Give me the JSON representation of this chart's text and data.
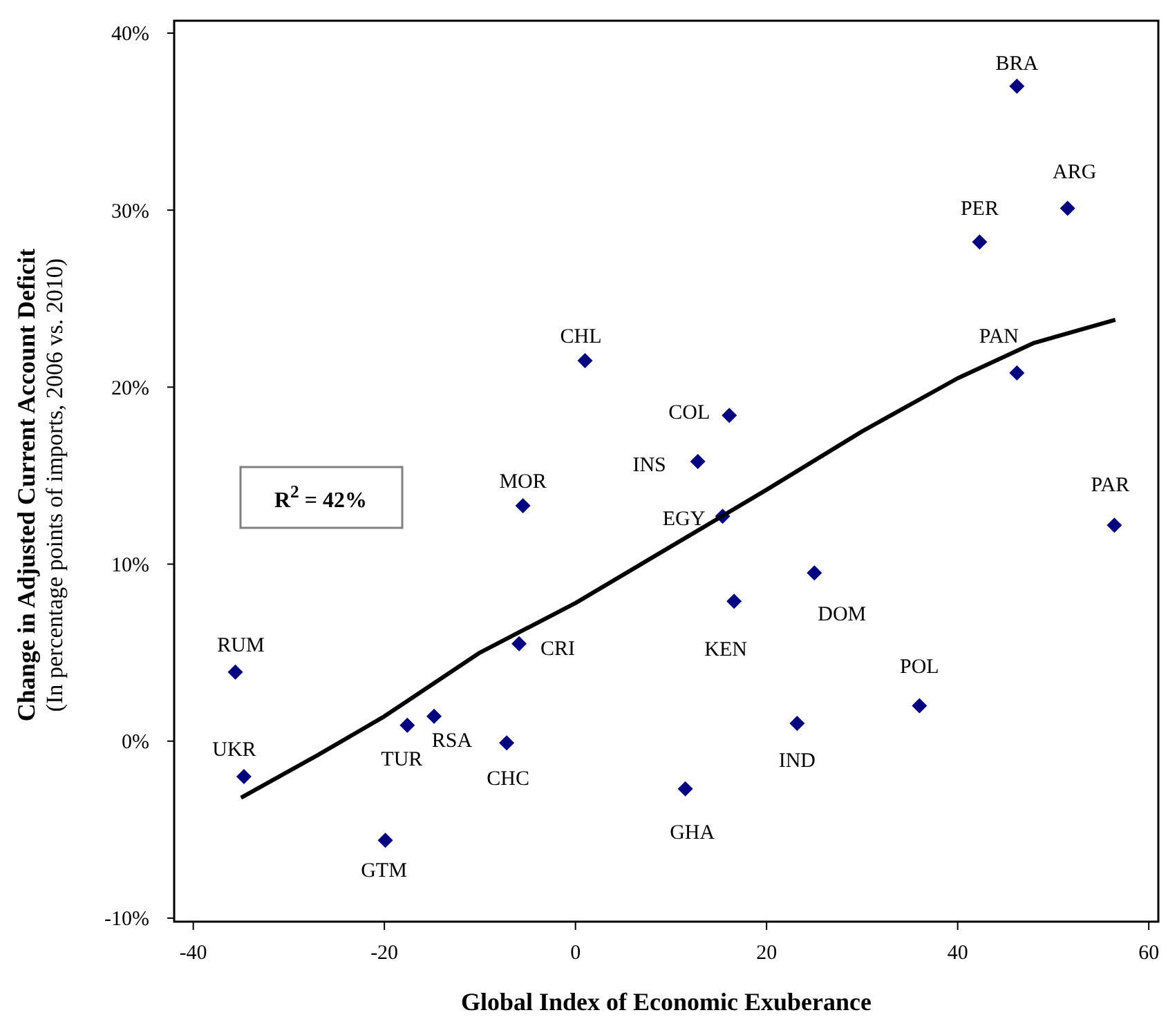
{
  "chart_data": {
    "type": "scatter",
    "xlabel": "Global Index of Economic Exuberance",
    "ylabel": "Change in Adjusted Current Account Deficit\n(In percentage points of imports, 2006 vs. 2010)",
    "xlim": [
      -42,
      61
    ],
    "xticks": [
      -40,
      -20,
      0,
      20,
      40,
      60
    ],
    "ylim": [
      -10.2,
      40.7
    ],
    "yticks": [
      {
        "value": -10,
        "label": "-10%"
      },
      {
        "value": 0,
        "label": "0%"
      },
      {
        "value": 10,
        "label": "10%"
      },
      {
        "value": 20,
        "label": "20%"
      },
      {
        "value": 30,
        "label": "30%"
      },
      {
        "value": 40,
        "label": "40%"
      }
    ],
    "grid": false,
    "series": [
      {
        "color": "#000080",
        "marker": "diamond",
        "x": [
          46.2,
          51.5,
          42.3,
          46.2,
          1.0,
          16.1,
          12.8,
          15.4,
          -5.5,
          56.4,
          25.0,
          16.6,
          -5.9,
          -35.6,
          36.0,
          23.2,
          -14.8,
          -17.6,
          -7.2,
          -34.7,
          11.5,
          -19.9
        ],
        "values": [
          37.0,
          30.1,
          28.2,
          20.8,
          21.5,
          18.4,
          15.8,
          12.7,
          13.3,
          12.2,
          9.5,
          7.9,
          5.5,
          3.9,
          2.0,
          1.0,
          1.4,
          0.9,
          -0.1,
          -2.0,
          -2.7,
          -5.6
        ]
      },
      {
        "type": "line",
        "color": "#000000",
        "marker": "none",
        "line_style": "solid",
        "x": [
          -35,
          -27,
          -20,
          -10,
          0,
          10,
          20,
          30,
          40,
          48,
          56.5
        ],
        "values": [
          -3.2,
          -0.8,
          1.4,
          5.0,
          7.8,
          11.0,
          14.2,
          17.5,
          20.5,
          22.5,
          23.8
        ]
      }
    ],
    "annotations": [
      {
        "text": "BRA",
        "x": 46.2,
        "y": 37.0
      },
      {
        "text": "ARG",
        "x": 51.5,
        "y": 30.1
      },
      {
        "text": "PER",
        "x": 42.3,
        "y": 28.2
      },
      {
        "text": "PAN",
        "x": 46.2,
        "y": 20.8
      },
      {
        "text": "CHL",
        "x": 1.0,
        "y": 21.5
      },
      {
        "text": "COL",
        "x": 16.1,
        "y": 18.4
      },
      {
        "text": "INS",
        "x": 12.8,
        "y": 15.8
      },
      {
        "text": "EGY",
        "x": 15.4,
        "y": 12.7
      },
      {
        "text": "MOR",
        "x": -5.5,
        "y": 13.3
      },
      {
        "text": "PAR",
        "x": 56.4,
        "y": 12.2
      },
      {
        "text": "DOM",
        "x": 25.0,
        "y": 9.5
      },
      {
        "text": "KEN",
        "x": 16.6,
        "y": 7.9
      },
      {
        "text": "CRI",
        "x": -5.9,
        "y": 5.5
      },
      {
        "text": "RUM",
        "x": -35.6,
        "y": 3.9
      },
      {
        "text": "POL",
        "x": 36.0,
        "y": 2.0
      },
      {
        "text": "IND",
        "x": 23.2,
        "y": 1.0
      },
      {
        "text": "RSA",
        "x": -14.8,
        "y": 1.4
      },
      {
        "text": "TUR",
        "x": -17.6,
        "y": 0.9
      },
      {
        "text": "CHC",
        "x": -7.2,
        "y": -0.1
      },
      {
        "text": "UKR",
        "x": -34.7,
        "y": -2.0
      },
      {
        "text": "GHA",
        "x": 11.5,
        "y": -2.7
      },
      {
        "text": "GTM",
        "x": -19.9,
        "y": -5.6
      },
      "R$^{2}$ = 42%"
    ]
  }
}
